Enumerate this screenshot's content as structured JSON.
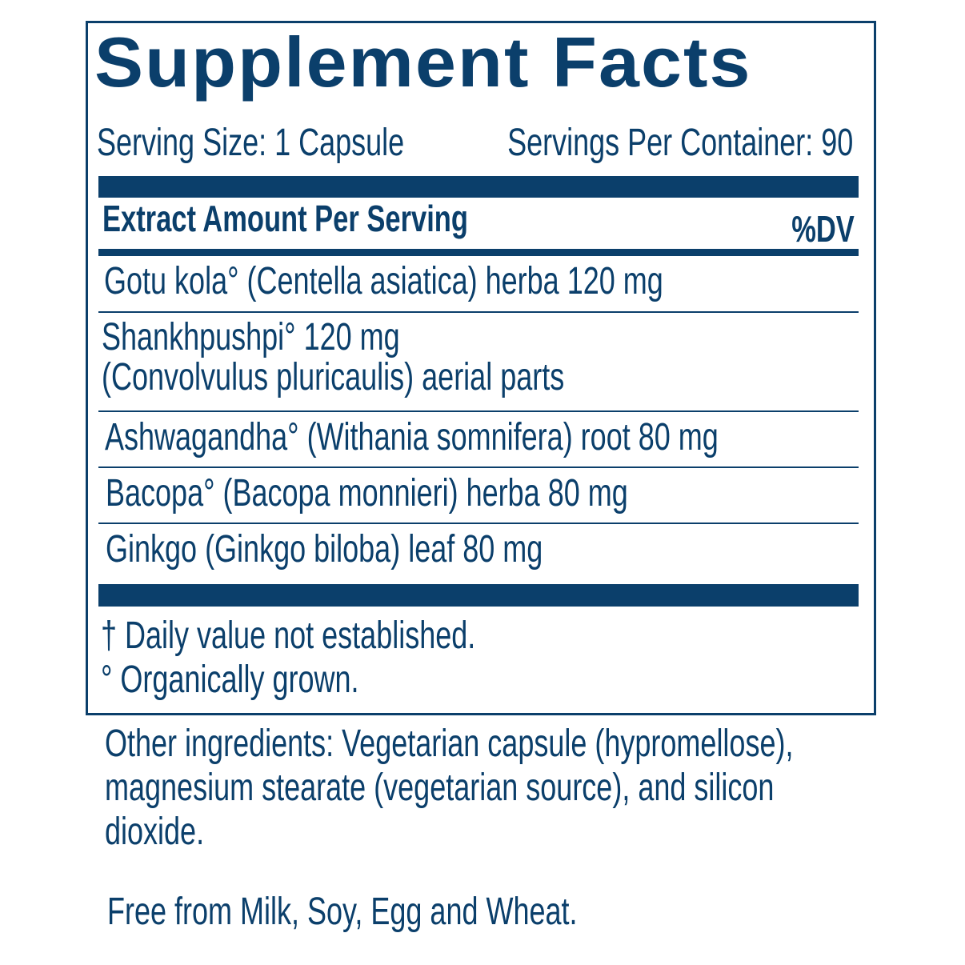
{
  "title": "Supplement Facts",
  "serving_size": "Serving Size: 1 Capsule",
  "servings_per_container": "Servings Per Container: 90",
  "header": {
    "left": "Extract Amount Per Serving",
    "right": "%DV"
  },
  "ingredients": [
    {
      "lines": [
        "Gotu kola° (Centella asiatica) herba 120 mg"
      ]
    },
    {
      "lines": [
        "Shankhpushpi° 120 mg",
        "(Convolvulus pluricaulis) aerial parts"
      ]
    },
    {
      "lines": [
        "Ashwagandha° (Withania somnifera) root 80 mg"
      ]
    },
    {
      "lines": [
        "Bacopa° (Bacopa monnieri) herba 80 mg"
      ]
    },
    {
      "lines": [
        "Ginkgo (Ginkgo biloba) leaf 80 mg"
      ]
    }
  ],
  "footnotes": [
    "† Daily value not established.",
    "° Organically grown."
  ],
  "other_ingredients": [
    "Other ingredients: Vegetarian capsule (hypromellose),",
    "magnesium stearate (vegetarian source), and silicon",
    "dioxide."
  ],
  "allergen_statement": "Free from Milk, Soy, Egg and Wheat.",
  "colors": {
    "label_blue": "#0b3f6b"
  }
}
